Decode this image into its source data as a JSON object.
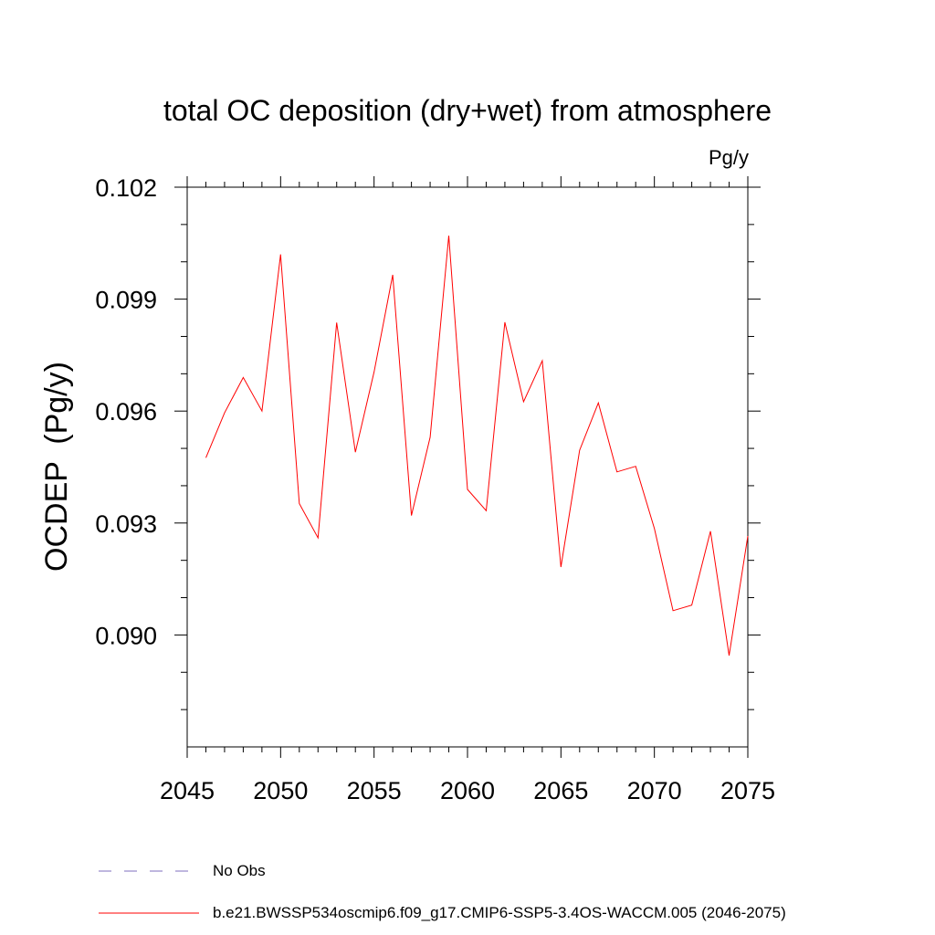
{
  "chart_data": {
    "type": "line",
    "title": "total OC deposition (dry+wet) from atmosphere",
    "units_label": "Pg/y",
    "ylabel": "OCDEP  (Pg/y)",
    "xlabel": "",
    "xlim": [
      2045,
      2075
    ],
    "ylim": [
      0.087,
      0.102
    ],
    "x_ticks": [
      2045,
      2050,
      2055,
      2060,
      2065,
      2070,
      2075
    ],
    "x_tick_labels": [
      "2045",
      "2050",
      "2055",
      "2060",
      "2065",
      "2070",
      "2075"
    ],
    "y_ticks": [
      0.09,
      0.093,
      0.096,
      0.099,
      0.102
    ],
    "y_tick_labels": [
      "0.090",
      "0.093",
      "0.096",
      "0.099",
      "0.102"
    ],
    "grid": false,
    "legend_position": "bottom",
    "series": [
      {
        "name": "b.e21.BWSSP534oscmip6.f09_g17.CMIP6-SSP5-3.4OS-WACCM.005 (2046-2075)",
        "color": "#ff0000",
        "x": [
          2046,
          2047,
          2048,
          2049,
          2050,
          2051,
          2052,
          2053,
          2054,
          2055,
          2056,
          2057,
          2058,
          2059,
          2060,
          2061,
          2062,
          2063,
          2064,
          2065,
          2066,
          2067,
          2068,
          2069,
          2070,
          2071,
          2072,
          2073,
          2074,
          2075
        ],
        "y": [
          0.09475,
          0.09595,
          0.0969,
          0.096,
          0.1002,
          0.09352,
          0.0926,
          0.09837,
          0.0949,
          0.09705,
          0.09965,
          0.0932,
          0.0953,
          0.1007,
          0.0939,
          0.09333,
          0.09838,
          0.09625,
          0.09735,
          0.09182,
          0.09495,
          0.09622,
          0.09437,
          0.09452,
          0.09285,
          0.09065,
          0.0908,
          0.09278,
          0.08945,
          0.09265
        ]
      }
    ],
    "legend": [
      {
        "label": "No Obs",
        "color": "#7f6fbf",
        "style": "dashed"
      },
      {
        "label": "b.e21.BWSSP534oscmip6.f09_g17.CMIP6-SSP5-3.4OS-WACCM.005 (2046-2075)",
        "color": "#ff0000",
        "style": "solid"
      }
    ]
  }
}
